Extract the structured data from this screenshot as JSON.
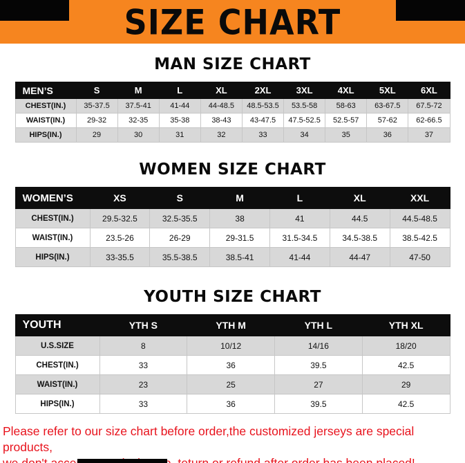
{
  "title": "SIZE CHART",
  "colors": {
    "orange": "#F6851F",
    "ink": "#0d0d0d",
    "row-gray": "#d8d8d8",
    "red": "#e8131d"
  },
  "sections": {
    "man": {
      "heading": "MAN SIZE CHART",
      "table": {
        "header": [
          "MEN’S",
          "S",
          "M",
          "L",
          "XL",
          "2XL",
          "3XL",
          "4XL",
          "5XL",
          "6XL"
        ],
        "rows": [
          [
            "CHEST(IN.)",
            "35-37.5",
            "37.5-41",
            "41-44",
            "44-48.5",
            "48.5-53.5",
            "53.5-58",
            "58-63",
            "63-67.5",
            "67.5-72"
          ],
          [
            "WAIST(IN.)",
            "29-32",
            "32-35",
            "35-38",
            "38-43",
            "43-47.5",
            "47.5-52.5",
            "52.5-57",
            "57-62",
            "62-66.5"
          ],
          [
            "HIPS(IN.)",
            "29",
            "30",
            "31",
            "32",
            "33",
            "34",
            "35",
            "36",
            "37"
          ]
        ]
      }
    },
    "women": {
      "heading": "WOMEN SIZE CHART",
      "table": {
        "header": [
          "WOMEN’S",
          "XS",
          "S",
          "M",
          "L",
          "XL",
          "XXL"
        ],
        "rows": [
          [
            "CHEST(IN.)",
            "29.5-32.5",
            "32.5-35.5",
            "38",
            "41",
            "44.5",
            "44.5-48.5"
          ],
          [
            "WAIST(IN.)",
            "23.5-26",
            "26-29",
            "29-31.5",
            "31.5-34.5",
            "34.5-38.5",
            "38.5-42.5"
          ],
          [
            "HIPS(IN.)",
            "33-35.5",
            "35.5-38.5",
            "38.5-41",
            "41-44",
            "44-47",
            "47-50"
          ]
        ]
      }
    },
    "youth": {
      "heading": "YOUTH SIZE CHART",
      "table": {
        "header": [
          "YOUTH",
          "YTH S",
          "YTH M",
          "YTH L",
          "YTH XL"
        ],
        "rows": [
          [
            "U.S.SIZE",
            "8",
            "10/12",
            "14/16",
            "18/20"
          ],
          [
            "CHEST(IN.)",
            "33",
            "36",
            "39.5",
            "42.5"
          ],
          [
            "WAIST(IN.)",
            "23",
            "25",
            "27",
            "29"
          ],
          [
            "HIPS(IN.)",
            "33",
            "36",
            "39.5",
            "42.5"
          ]
        ]
      }
    }
  },
  "footer": {
    "line1": "Please refer to our size chart before order,the customized jerseys are special products,",
    "line2": "we don't accept cancel, change, teturn or refund after order has been placed!"
  }
}
